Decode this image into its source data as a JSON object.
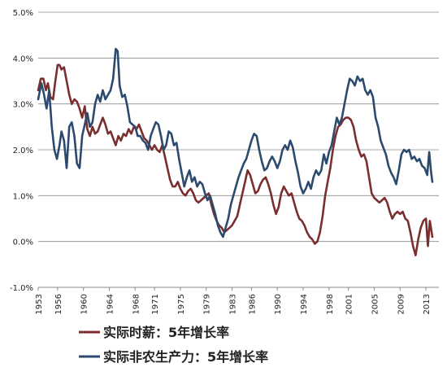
{
  "chart_data": {
    "type": "line",
    "title": "",
    "xlabel": "",
    "ylabel": "",
    "xlim": [
      1953.0,
      2015.0
    ],
    "ylim": [
      -1.0,
      5.0
    ],
    "y_ticks": [
      "-1.0%",
      "0.0%",
      "1.0%",
      "2.0%",
      "3.0%",
      "4.0%",
      "5.0%"
    ],
    "x_ticks": [
      "1953",
      "1956",
      "1960",
      "1964",
      "1968",
      "1971",
      "1975",
      "1979",
      "1983",
      "1986",
      "1990",
      "1994",
      "1998",
      "2001",
      "2005",
      "2009",
      "2013"
    ],
    "grid": "horizontal",
    "legend_position": "bottom",
    "series": [
      {
        "name": "实际时薪：5年增长率",
        "color": "#7a2e2e",
        "points": [
          [
            1953.0,
            3.3
          ],
          [
            1953.4,
            3.55
          ],
          [
            1953.8,
            3.55
          ],
          [
            1954.2,
            3.3
          ],
          [
            1954.5,
            3.45
          ],
          [
            1954.9,
            3.15
          ],
          [
            1955.3,
            3.1
          ],
          [
            1955.6,
            3.45
          ],
          [
            1956.0,
            3.85
          ],
          [
            1956.3,
            3.85
          ],
          [
            1956.6,
            3.75
          ],
          [
            1957.0,
            3.8
          ],
          [
            1957.4,
            3.5
          ],
          [
            1957.8,
            3.2
          ],
          [
            1958.2,
            3.0
          ],
          [
            1958.6,
            3.1
          ],
          [
            1959.0,
            3.05
          ],
          [
            1959.4,
            2.9
          ],
          [
            1959.8,
            2.7
          ],
          [
            1960.2,
            2.95
          ],
          [
            1960.6,
            2.45
          ],
          [
            1961.0,
            2.3
          ],
          [
            1961.4,
            2.5
          ],
          [
            1961.8,
            2.35
          ],
          [
            1962.2,
            2.4
          ],
          [
            1962.6,
            2.55
          ],
          [
            1963.0,
            2.7
          ],
          [
            1963.4,
            2.55
          ],
          [
            1963.8,
            2.35
          ],
          [
            1964.2,
            2.4
          ],
          [
            1964.6,
            2.25
          ],
          [
            1965.0,
            2.1
          ],
          [
            1965.4,
            2.3
          ],
          [
            1965.8,
            2.2
          ],
          [
            1966.2,
            2.35
          ],
          [
            1966.6,
            2.3
          ],
          [
            1967.0,
            2.45
          ],
          [
            1967.4,
            2.35
          ],
          [
            1967.8,
            2.5
          ],
          [
            1968.2,
            2.45
          ],
          [
            1968.6,
            2.55
          ],
          [
            1969.0,
            2.4
          ],
          [
            1969.4,
            2.25
          ],
          [
            1969.8,
            2.2
          ],
          [
            1970.2,
            2.1
          ],
          [
            1970.6,
            2.0
          ],
          [
            1971.0,
            2.1
          ],
          [
            1971.4,
            2.0
          ],
          [
            1971.8,
            1.95
          ],
          [
            1972.2,
            2.1
          ],
          [
            1972.6,
            1.85
          ],
          [
            1973.0,
            1.6
          ],
          [
            1973.4,
            1.35
          ],
          [
            1973.8,
            1.2
          ],
          [
            1974.2,
            1.2
          ],
          [
            1974.6,
            1.3
          ],
          [
            1975.0,
            1.15
          ],
          [
            1975.4,
            1.05
          ],
          [
            1975.8,
            1.0
          ],
          [
            1976.2,
            1.1
          ],
          [
            1976.6,
            1.15
          ],
          [
            1977.0,
            1.05
          ],
          [
            1977.4,
            0.9
          ],
          [
            1977.8,
            0.85
          ],
          [
            1978.2,
            0.9
          ],
          [
            1978.6,
            0.95
          ],
          [
            1979.0,
            1.0
          ],
          [
            1979.4,
            1.05
          ],
          [
            1979.8,
            0.8
          ],
          [
            1980.2,
            0.6
          ],
          [
            1980.6,
            0.45
          ],
          [
            1981.0,
            0.35
          ],
          [
            1981.4,
            0.3
          ],
          [
            1981.8,
            0.2
          ],
          [
            1982.2,
            0.25
          ],
          [
            1982.6,
            0.3
          ],
          [
            1983.0,
            0.35
          ],
          [
            1983.4,
            0.45
          ],
          [
            1983.8,
            0.55
          ],
          [
            1984.2,
            0.8
          ],
          [
            1984.6,
            1.05
          ],
          [
            1985.0,
            1.3
          ],
          [
            1985.4,
            1.55
          ],
          [
            1985.8,
            1.45
          ],
          [
            1986.2,
            1.25
          ],
          [
            1986.6,
            1.05
          ],
          [
            1987.0,
            1.1
          ],
          [
            1987.4,
            1.25
          ],
          [
            1987.8,
            1.35
          ],
          [
            1988.2,
            1.4
          ],
          [
            1988.6,
            1.25
          ],
          [
            1989.0,
            1.05
          ],
          [
            1989.4,
            0.8
          ],
          [
            1989.8,
            0.6
          ],
          [
            1990.2,
            0.75
          ],
          [
            1990.6,
            1.05
          ],
          [
            1991.0,
            1.2
          ],
          [
            1991.4,
            1.1
          ],
          [
            1991.8,
            1.0
          ],
          [
            1992.2,
            1.05
          ],
          [
            1992.6,
            0.85
          ],
          [
            1993.0,
            0.65
          ],
          [
            1993.4,
            0.5
          ],
          [
            1993.8,
            0.45
          ],
          [
            1994.2,
            0.35
          ],
          [
            1994.6,
            0.2
          ],
          [
            1995.0,
            0.1
          ],
          [
            1995.4,
            0.05
          ],
          [
            1995.8,
            -0.05
          ],
          [
            1996.2,
            0.0
          ],
          [
            1996.6,
            0.2
          ],
          [
            1997.0,
            0.55
          ],
          [
            1997.4,
            1.0
          ],
          [
            1997.8,
            1.3
          ],
          [
            1998.2,
            1.6
          ],
          [
            1998.6,
            2.0
          ],
          [
            1999.0,
            2.3
          ],
          [
            1999.4,
            2.5
          ],
          [
            1999.8,
            2.55
          ],
          [
            2000.2,
            2.65
          ],
          [
            2000.6,
            2.7
          ],
          [
            2001.0,
            2.7
          ],
          [
            2001.4,
            2.65
          ],
          [
            2001.8,
            2.5
          ],
          [
            2002.2,
            2.2
          ],
          [
            2002.6,
            2.0
          ],
          [
            2003.0,
            1.85
          ],
          [
            2003.4,
            1.9
          ],
          [
            2003.8,
            1.75
          ],
          [
            2004.2,
            1.4
          ],
          [
            2004.6,
            1.05
          ],
          [
            2005.0,
            0.95
          ],
          [
            2005.4,
            0.9
          ],
          [
            2005.8,
            0.85
          ],
          [
            2006.2,
            0.9
          ],
          [
            2006.6,
            0.95
          ],
          [
            2007.0,
            0.85
          ],
          [
            2007.4,
            0.65
          ],
          [
            2007.8,
            0.5
          ],
          [
            2008.2,
            0.6
          ],
          [
            2008.6,
            0.65
          ],
          [
            2009.0,
            0.6
          ],
          [
            2009.4,
            0.65
          ],
          [
            2009.8,
            0.5
          ],
          [
            2010.2,
            0.45
          ],
          [
            2010.6,
            0.2
          ],
          [
            2011.0,
            -0.1
          ],
          [
            2011.4,
            -0.3
          ],
          [
            2011.8,
            0.05
          ],
          [
            2012.2,
            0.3
          ],
          [
            2012.6,
            0.45
          ],
          [
            2013.0,
            0.5
          ],
          [
            2013.3,
            -0.1
          ],
          [
            2013.6,
            0.45
          ],
          [
            2014.0,
            0.1
          ]
        ]
      },
      {
        "name": "实际非农生产力：5年增长率",
        "color": "#2b4a6e",
        "points": [
          [
            1953.0,
            3.1
          ],
          [
            1953.5,
            3.45
          ],
          [
            1953.9,
            3.2
          ],
          [
            1954.3,
            2.9
          ],
          [
            1954.7,
            3.3
          ],
          [
            1955.1,
            2.5
          ],
          [
            1955.5,
            2.0
          ],
          [
            1955.9,
            1.8
          ],
          [
            1956.3,
            2.1
          ],
          [
            1956.6,
            2.4
          ],
          [
            1957.0,
            2.2
          ],
          [
            1957.4,
            1.6
          ],
          [
            1957.8,
            2.5
          ],
          [
            1958.2,
            2.6
          ],
          [
            1958.6,
            2.3
          ],
          [
            1959.0,
            1.7
          ],
          [
            1959.4,
            1.6
          ],
          [
            1959.8,
            2.3
          ],
          [
            1960.2,
            2.55
          ],
          [
            1960.6,
            2.8
          ],
          [
            1961.0,
            2.5
          ],
          [
            1961.4,
            2.6
          ],
          [
            1961.8,
            3.0
          ],
          [
            1962.2,
            3.2
          ],
          [
            1962.6,
            3.05
          ],
          [
            1963.0,
            3.3
          ],
          [
            1963.4,
            3.1
          ],
          [
            1963.8,
            3.2
          ],
          [
            1964.2,
            3.3
          ],
          [
            1964.6,
            3.55
          ],
          [
            1965.0,
            4.2
          ],
          [
            1965.3,
            4.15
          ],
          [
            1965.6,
            3.4
          ],
          [
            1966.0,
            3.15
          ],
          [
            1966.4,
            3.2
          ],
          [
            1966.8,
            2.95
          ],
          [
            1967.2,
            2.6
          ],
          [
            1967.6,
            2.55
          ],
          [
            1968.0,
            2.5
          ],
          [
            1968.4,
            2.3
          ],
          [
            1968.8,
            2.3
          ],
          [
            1969.2,
            2.2
          ],
          [
            1969.6,
            2.15
          ],
          [
            1970.0,
            2.0
          ],
          [
            1970.4,
            2.3
          ],
          [
            1970.8,
            2.45
          ],
          [
            1971.2,
            2.6
          ],
          [
            1971.6,
            2.55
          ],
          [
            1972.0,
            2.3
          ],
          [
            1972.4,
            2.0
          ],
          [
            1972.8,
            2.1
          ],
          [
            1973.2,
            2.4
          ],
          [
            1973.6,
            2.35
          ],
          [
            1974.0,
            2.1
          ],
          [
            1974.4,
            2.15
          ],
          [
            1974.8,
            1.8
          ],
          [
            1975.2,
            1.5
          ],
          [
            1975.6,
            1.2
          ],
          [
            1976.0,
            1.4
          ],
          [
            1976.4,
            1.55
          ],
          [
            1976.8,
            1.3
          ],
          [
            1977.2,
            1.4
          ],
          [
            1977.6,
            1.2
          ],
          [
            1978.0,
            1.3
          ],
          [
            1978.4,
            1.25
          ],
          [
            1978.8,
            1.05
          ],
          [
            1979.2,
            0.9
          ],
          [
            1979.6,
            1.0
          ],
          [
            1980.0,
            0.8
          ],
          [
            1980.4,
            0.6
          ],
          [
            1980.8,
            0.35
          ],
          [
            1981.2,
            0.2
          ],
          [
            1981.6,
            0.1
          ],
          [
            1982.0,
            0.3
          ],
          [
            1982.4,
            0.5
          ],
          [
            1982.8,
            0.8
          ],
          [
            1983.2,
            1.0
          ],
          [
            1983.6,
            1.2
          ],
          [
            1984.0,
            1.4
          ],
          [
            1984.4,
            1.55
          ],
          [
            1984.8,
            1.7
          ],
          [
            1985.2,
            1.8
          ],
          [
            1985.6,
            2.0
          ],
          [
            1986.0,
            2.2
          ],
          [
            1986.4,
            2.35
          ],
          [
            1986.8,
            2.3
          ],
          [
            1987.2,
            2.0
          ],
          [
            1987.6,
            1.75
          ],
          [
            1988.0,
            1.55
          ],
          [
            1988.4,
            1.6
          ],
          [
            1988.8,
            1.75
          ],
          [
            1989.2,
            1.85
          ],
          [
            1989.6,
            1.75
          ],
          [
            1990.0,
            1.6
          ],
          [
            1990.4,
            1.75
          ],
          [
            1990.8,
            2.0
          ],
          [
            1991.2,
            2.1
          ],
          [
            1991.6,
            2.0
          ],
          [
            1992.0,
            2.2
          ],
          [
            1992.4,
            2.05
          ],
          [
            1992.8,
            1.75
          ],
          [
            1993.2,
            1.5
          ],
          [
            1993.6,
            1.2
          ],
          [
            1994.0,
            1.05
          ],
          [
            1994.4,
            1.15
          ],
          [
            1994.8,
            1.3
          ],
          [
            1995.2,
            1.15
          ],
          [
            1995.6,
            1.4
          ],
          [
            1996.0,
            1.55
          ],
          [
            1996.4,
            1.45
          ],
          [
            1996.8,
            1.55
          ],
          [
            1997.2,
            1.9
          ],
          [
            1997.6,
            1.7
          ],
          [
            1998.0,
            1.95
          ],
          [
            1998.4,
            2.1
          ],
          [
            1998.8,
            2.4
          ],
          [
            1999.2,
            2.7
          ],
          [
            1999.6,
            2.55
          ],
          [
            2000.0,
            2.7
          ],
          [
            2000.4,
            3.0
          ],
          [
            2000.8,
            3.3
          ],
          [
            2001.2,
            3.55
          ],
          [
            2001.6,
            3.5
          ],
          [
            2002.0,
            3.4
          ],
          [
            2002.4,
            3.6
          ],
          [
            2002.8,
            3.5
          ],
          [
            2003.2,
            3.55
          ],
          [
            2003.6,
            3.3
          ],
          [
            2004.0,
            3.2
          ],
          [
            2004.4,
            3.3
          ],
          [
            2004.8,
            3.15
          ],
          [
            2005.2,
            2.7
          ],
          [
            2005.6,
            2.5
          ],
          [
            2006.0,
            2.2
          ],
          [
            2006.4,
            2.05
          ],
          [
            2006.8,
            1.9
          ],
          [
            2007.2,
            1.65
          ],
          [
            2007.6,
            1.5
          ],
          [
            2008.0,
            1.4
          ],
          [
            2008.4,
            1.25
          ],
          [
            2008.8,
            1.55
          ],
          [
            2009.2,
            1.9
          ],
          [
            2009.6,
            2.0
          ],
          [
            2010.0,
            1.95
          ],
          [
            2010.4,
            2.0
          ],
          [
            2010.8,
            1.8
          ],
          [
            2011.2,
            1.85
          ],
          [
            2011.6,
            1.75
          ],
          [
            2012.0,
            1.8
          ],
          [
            2012.4,
            1.65
          ],
          [
            2012.8,
            1.6
          ],
          [
            2013.2,
            1.45
          ],
          [
            2013.5,
            1.95
          ],
          [
            2013.8,
            1.5
          ],
          [
            2014.0,
            1.3
          ]
        ]
      }
    ]
  }
}
